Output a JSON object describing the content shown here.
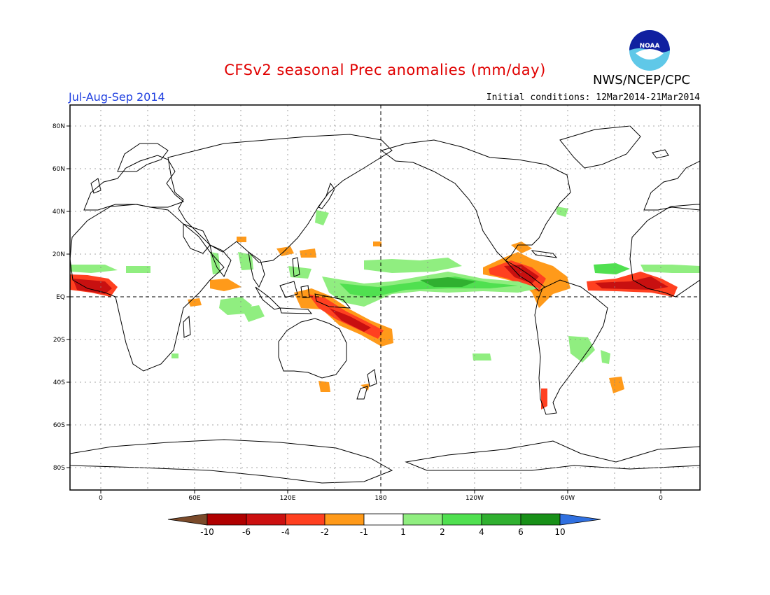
{
  "header": {
    "title": "CFSv2 seasonal Prec anomalies (mm/day)",
    "season": "Jul-Aug-Sep 2014",
    "initial_conditions": "Initial conditions: 12Mar2014-21Mar2014",
    "agency": "NWS/NCEP/CPC",
    "logo_text": "NOAA"
  },
  "axes": {
    "lat_labels": [
      "80N",
      "60N",
      "40N",
      "20N",
      "EQ",
      "20S",
      "40S",
      "60S",
      "80S"
    ],
    "lon_labels": [
      "0",
      "60E",
      "120E",
      "180",
      "120W",
      "60W",
      "0"
    ]
  },
  "colorbar": {
    "labels": [
      "-10",
      "-6",
      "-4",
      "-2",
      "-1",
      "1",
      "2",
      "4",
      "6",
      "10"
    ],
    "colors": [
      "#7a4a2a",
      "#b00000",
      "#cc1010",
      "#ff4020",
      "#ff9a1a",
      "#ffffff",
      "#90ee80",
      "#50e050",
      "#30b030",
      "#189018",
      "#3070e0"
    ]
  },
  "colors": {
    "title": "#e00000",
    "season": "#2040e0",
    "dry_strong": "#c81010",
    "dry_med": "#ff4020",
    "dry_weak": "#ff9a1a",
    "wet_weak": "#90ee80",
    "wet_med": "#50e050",
    "wet_strong": "#30b030"
  }
}
